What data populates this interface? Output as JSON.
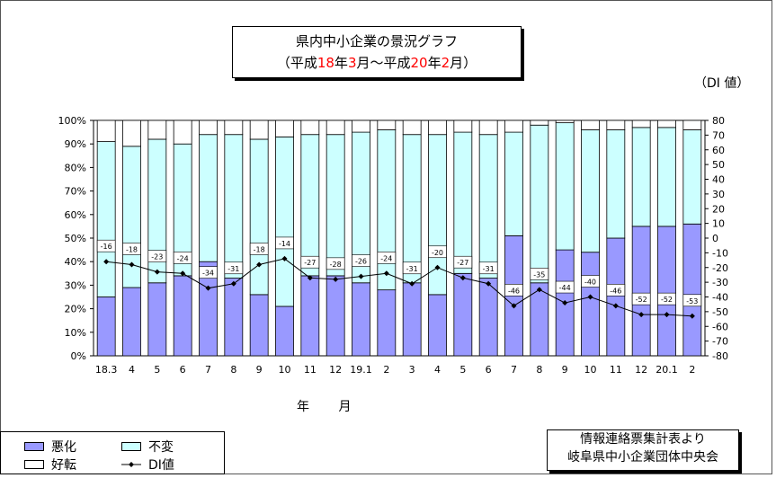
{
  "title": {
    "line1": "県内中小企業の景況グラフ",
    "line2_parts": [
      "（平成",
      "18",
      "年",
      "3",
      "月～平成",
      "20",
      "年",
      "2",
      "月）"
    ]
  },
  "di_unit_label": "（DI 値）",
  "xaxis_title": "年 月",
  "legend": {
    "bad": "悪化",
    "same": "不変",
    "good": "好転",
    "di": "DI値"
  },
  "source": {
    "line1": "情報連絡票集計表より",
    "line2": "岐阜県中小企業団体中央会"
  },
  "colors": {
    "bad": "#9999ff",
    "same": "#ccffff",
    "good": "#ffffff",
    "line": "#000000",
    "title_red": "#ff0000"
  },
  "chart_data": {
    "type": "bar",
    "stacked": true,
    "categories": [
      "18.3",
      "4",
      "5",
      "6",
      "7",
      "8",
      "9",
      "10",
      "11",
      "12",
      "19.1",
      "2",
      "3",
      "4",
      "5",
      "6",
      "7",
      "8",
      "9",
      "10",
      "11",
      "12",
      "20.1",
      "2"
    ],
    "series": [
      {
        "name": "悪化",
        "values": [
          25,
          29,
          31,
          34,
          40,
          33,
          26,
          21,
          34,
          34,
          31,
          28,
          31,
          26,
          35,
          33,
          51,
          31,
          45,
          44,
          50,
          55,
          55,
          56
        ]
      },
      {
        "name": "不変",
        "values": [
          66,
          60,
          61,
          56,
          54,
          61,
          66,
          72,
          60,
          60,
          64,
          68,
          63,
          68,
          60,
          61,
          44,
          67,
          54,
          52,
          46,
          42,
          42,
          40
        ]
      },
      {
        "name": "好転",
        "values": [
          9,
          11,
          8,
          10,
          6,
          6,
          8,
          7,
          6,
          6,
          5,
          4,
          6,
          6,
          5,
          6,
          5,
          2,
          1,
          4,
          4,
          3,
          3,
          4
        ]
      },
      {
        "name": "DI値",
        "type": "line",
        "axis": "right",
        "values": [
          -16,
          -18,
          -23,
          -24,
          -34,
          -31,
          -18,
          -14,
          -27,
          -28,
          -26,
          -24,
          -31,
          -20,
          -27,
          -31,
          -46,
          -35,
          -44,
          -40,
          -46,
          -52,
          -52,
          -53
        ]
      }
    ],
    "di_labels": [
      "-16",
      "-18",
      "-23",
      "-24",
      "-34",
      "-31",
      "-18",
      "-14",
      "-27",
      "-28",
      "-26",
      "-24",
      "-31",
      "-20",
      "-27",
      "-31",
      "-46",
      "-35",
      "-44",
      "-40",
      "-46",
      "-52",
      "-52",
      "-53"
    ],
    "left_axis": {
      "min": 0,
      "max": 100,
      "step": 10,
      "ticks": [
        "0%",
        "10%",
        "20%",
        "30%",
        "40%",
        "50%",
        "60%",
        "70%",
        "80%",
        "90%",
        "100%"
      ]
    },
    "right_axis": {
      "min": -80,
      "max": 80,
      "step": 10,
      "ticks": [
        "-80",
        "-70",
        "-60",
        "-50",
        "-40",
        "-30",
        "-20",
        "-10",
        "0",
        "10",
        "20",
        "30",
        "40",
        "50",
        "60",
        "70",
        "80"
      ]
    },
    "legend_position": "bottom-left"
  }
}
